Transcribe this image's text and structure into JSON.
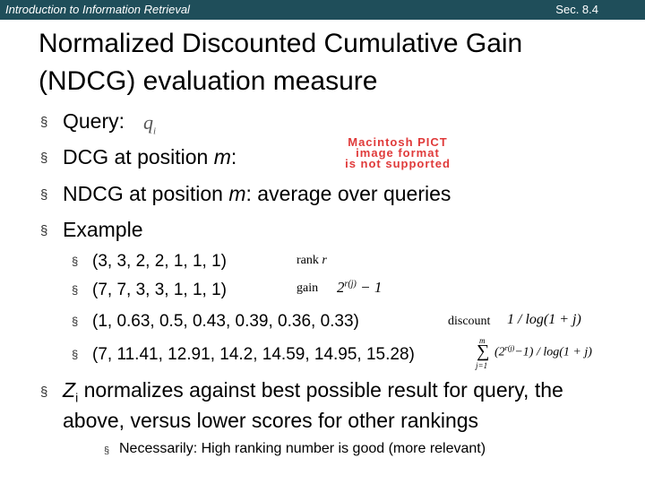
{
  "header": {
    "course": "Introduction to Information Retrieval",
    "section": "Sec. 8.4"
  },
  "slide": {
    "title_line1": "Normalized Discounted Cumulative Gain",
    "title_line2": "(NDCG) evaluation measure",
    "bullet_glyph": "§",
    "bullets": {
      "query_label": "Query:",
      "query_math": "q",
      "query_sub": "i",
      "dcg_prefix": "DCG at position ",
      "dcg_var": "m",
      "dcg_suffix": ":",
      "ndcg_prefix": "NDCG at position ",
      "ndcg_var": "m",
      "ndcg_suffix": ": average over queries",
      "example": "Example"
    },
    "pict_placeholder": {
      "line1": "Macintosh PICT",
      "line2": "image format",
      "line3": "is not supported"
    },
    "example_rows": [
      "(3, 3, 2, 2, 1, 1, 1)",
      "(7, 7, 3, 3, 1, 1, 1)",
      "(1, 0.63, 0.5, 0.43, 0.39, 0.36, 0.33)",
      "(7, 11.41, 12.91, 14.2, 14.59, 14.95, 15.28)"
    ],
    "annotations": {
      "rank_label": "rank",
      "rank_var": "r",
      "gain_label": "gain",
      "gain_formula": "2",
      "gain_exponent": "r(j)",
      "gain_minus": " − 1",
      "discount_label": "discount",
      "discount_formula": "1 / log(1 + j)",
      "sum_top": "m",
      "sum_symbol": "∑",
      "sum_bottom": "j=1",
      "sum_body": "(2",
      "sum_exponent": "r(j)",
      "sum_tail": "−1) / log(1 + j)"
    },
    "zi_var": "Z",
    "zi_sub": "i",
    "zi_line1": " normalizes against best possible result for query, the",
    "zi_line2": "above, versus lower scores for other rankings",
    "note": "Necessarily: High ranking number is good (more relevant)"
  }
}
